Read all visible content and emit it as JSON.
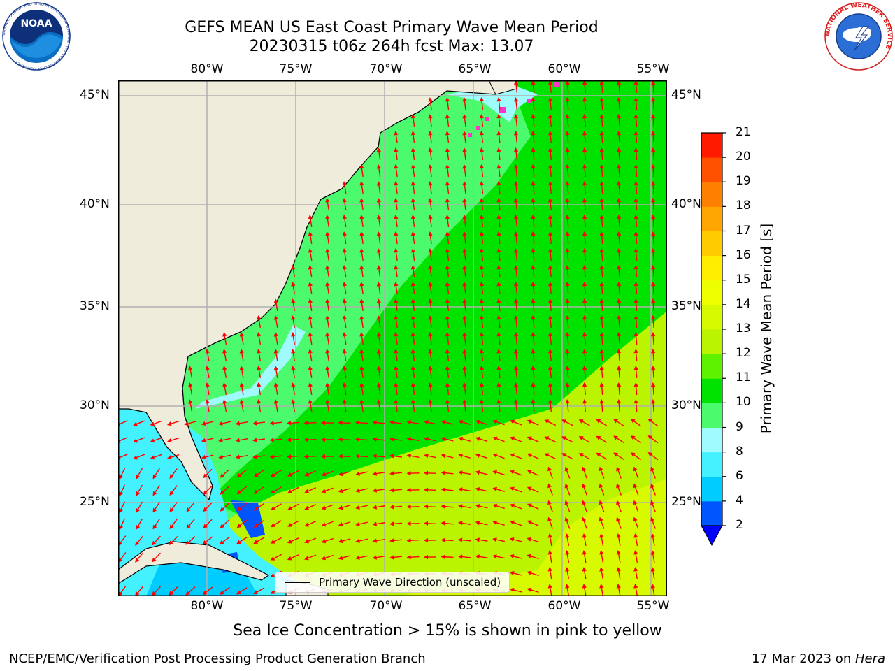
{
  "header": {
    "title_line1": "GEFS MEAN US East Coast Primary Wave Mean Period",
    "title_line2": "20230315 t06z 264h fcst   Max: 13.07"
  },
  "logos": {
    "noaa": {
      "text": "NOAA",
      "ring_text": "NATIONAL OCEANIC AND ATMOSPHERIC ADMINISTRATION · U.S. DEPARTMENT OF COMMERCE"
    },
    "nws": {
      "ring_text": "NATIONAL WEATHER SERVICE"
    }
  },
  "map": {
    "lon_labels": [
      "80°W",
      "75°W",
      "70°W",
      "65°W",
      "60°W",
      "55°W"
    ],
    "lat_labels": [
      "45°N",
      "40°N",
      "35°N",
      "30°N",
      "25°N"
    ],
    "lon_range": [
      -85,
      -54
    ],
    "lat_range": [
      20.2,
      46
    ],
    "ocean_color": "#4cfa6e",
    "land_color": "#efecdc",
    "grid_color": "#b0b0b0",
    "arrow_color": "#ff0000",
    "legend_label": "Primary Wave Direction (unscaled)"
  },
  "colorbar": {
    "label": "Primary Wave Mean Period [s]",
    "ticks": [
      "2",
      "4",
      "6",
      "8",
      "9",
      "10",
      "11",
      "12",
      "13",
      "14",
      "15",
      "16",
      "17",
      "18",
      "19",
      "20",
      "21"
    ],
    "colors": [
      "#0055ff",
      "#00ccff",
      "#44f2ff",
      "#a0fbff",
      "#4cfa6e",
      "#00e300",
      "#5ef200",
      "#bbf400",
      "#d7fa00",
      "#eeff00",
      "#ffee00",
      "#ffcc00",
      "#ffa600",
      "#ff8000",
      "#ff5000",
      "#ff1a00"
    ],
    "extend_color": "#0000ff"
  },
  "footer": {
    "subtitle": "Sea Ice Concentration > 15% is shown in pink to yellow",
    "left": "NCEP/EMC/Verification Post Processing Product Generation Branch",
    "right_date": "17 Mar 2023 on ",
    "right_host": "Hera"
  }
}
